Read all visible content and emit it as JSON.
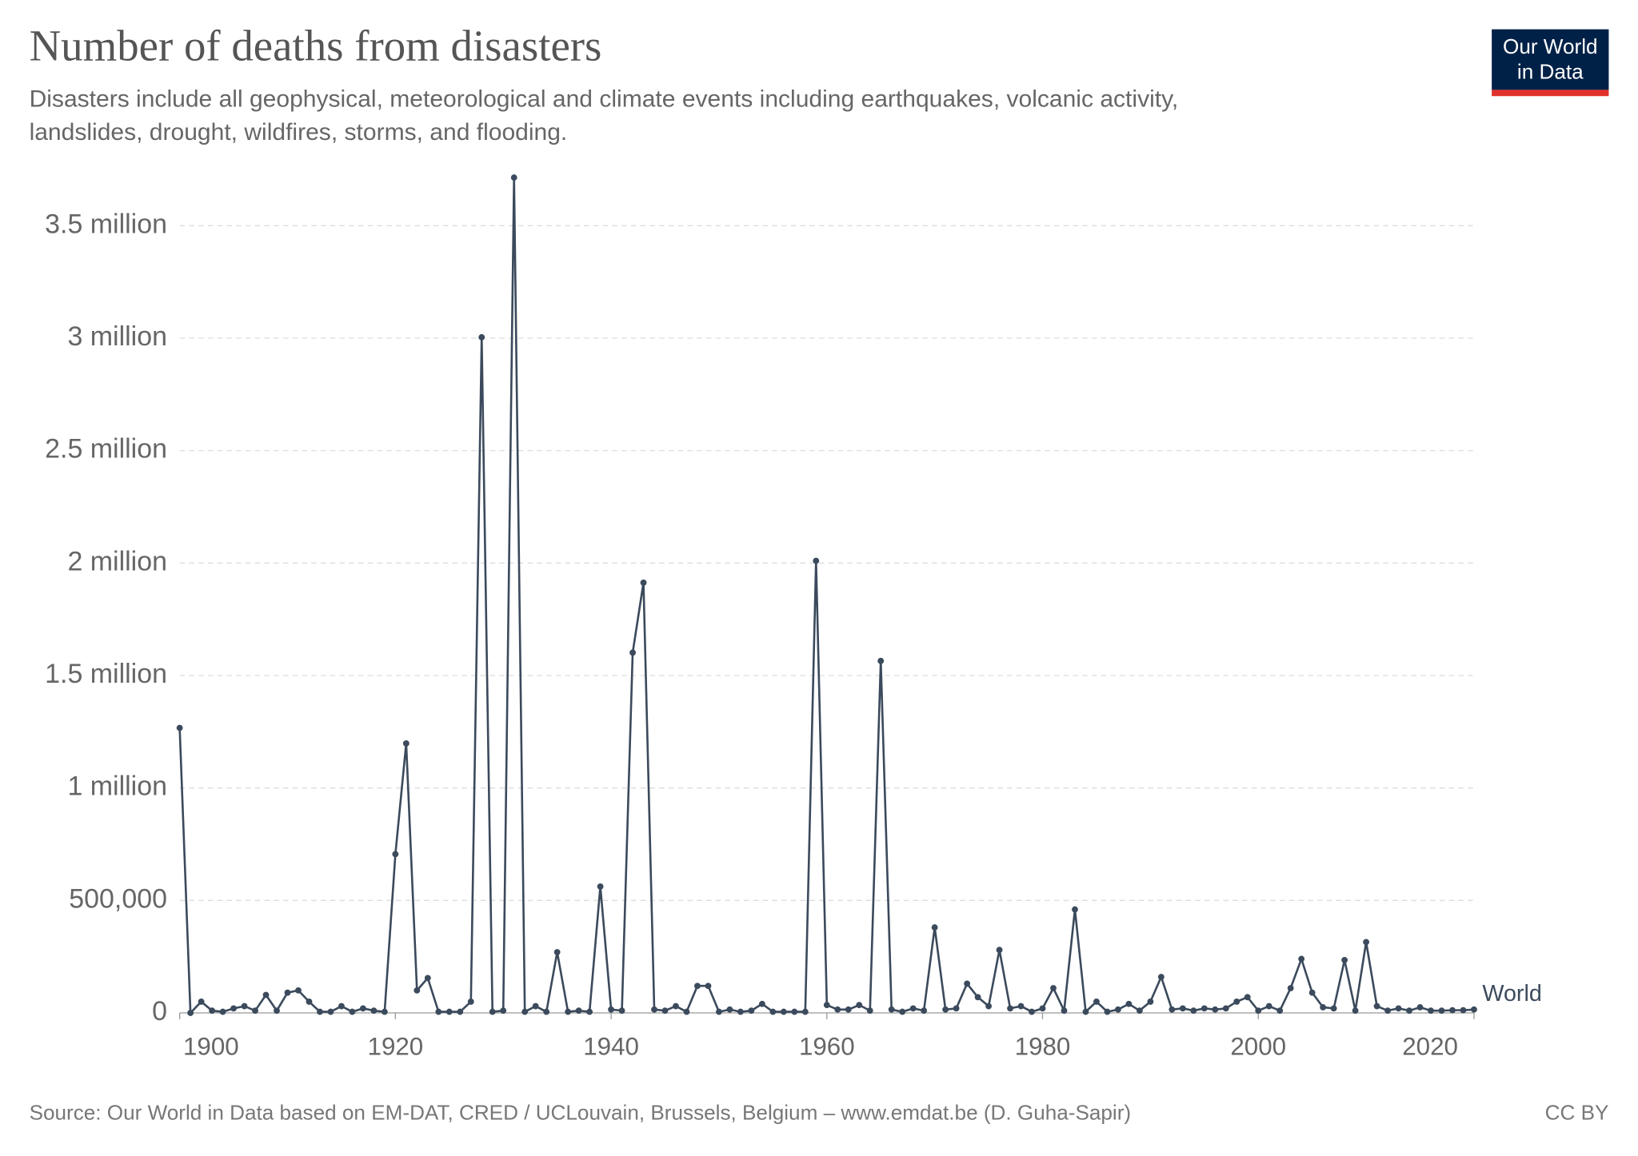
{
  "chart_data": {
    "type": "line",
    "title": "Number of deaths from disasters",
    "subtitle": [
      "Disasters include all geophysical, meteorological and climate events including earthquakes, volcanic activity,",
      "landslides, drought, wildfires, storms, and flooding."
    ],
    "logo": [
      "Our World",
      "in Data"
    ],
    "source": "Source: Our World in Data based on EM-DAT, CRED / UCLouvain, Brussels, Belgium – www.emdat.be (D. Guha-Sapir)",
    "license": "CC BY",
    "x": [
      1900,
      1901,
      1902,
      1903,
      1904,
      1905,
      1906,
      1907,
      1908,
      1909,
      1910,
      1911,
      1912,
      1913,
      1914,
      1915,
      1916,
      1917,
      1918,
      1919,
      1920,
      1921,
      1922,
      1923,
      1924,
      1925,
      1926,
      1927,
      1928,
      1929,
      1930,
      1931,
      1932,
      1933,
      1934,
      1935,
      1936,
      1937,
      1938,
      1939,
      1940,
      1941,
      1942,
      1943,
      1944,
      1945,
      1946,
      1947,
      1948,
      1949,
      1950,
      1951,
      1952,
      1953,
      1954,
      1955,
      1956,
      1957,
      1958,
      1959,
      1960,
      1961,
      1962,
      1963,
      1964,
      1965,
      1966,
      1967,
      1968,
      1969,
      1970,
      1971,
      1972,
      1973,
      1974,
      1975,
      1976,
      1977,
      1978,
      1979,
      1980,
      1981,
      1982,
      1983,
      1984,
      1985,
      1986,
      1987,
      1988,
      1989,
      1990,
      1991,
      1992,
      1993,
      1994,
      1995,
      1996,
      1997,
      1998,
      1999,
      2000,
      2001,
      2002,
      2003,
      2004,
      2005,
      2006,
      2007,
      2008,
      2009,
      2010,
      2011,
      2012,
      2013,
      2014,
      2015,
      2016,
      2017,
      2018,
      2019,
      2020
    ],
    "series": [
      {
        "name": "World",
        "color": "#3b4a5c",
        "values": [
          1267000,
          0,
          50000,
          10000,
          5000,
          20000,
          30000,
          10000,
          80000,
          10000,
          90000,
          100000,
          50000,
          5000,
          5000,
          30000,
          5000,
          20000,
          10000,
          5000,
          706000,
          1198000,
          100000,
          155000,
          5000,
          5000,
          5000,
          50000,
          3004000,
          5000,
          10000,
          3714000,
          5000,
          30000,
          5000,
          270000,
          5000,
          10000,
          5000,
          562000,
          15000,
          10000,
          1602000,
          1913000,
          15000,
          10000,
          30000,
          5000,
          120000,
          120000,
          5000,
          15000,
          5000,
          10000,
          40000,
          5000,
          5000,
          5000,
          5000,
          2010000,
          35000,
          15000,
          15000,
          35000,
          10000,
          1565000,
          15000,
          5000,
          20000,
          10000,
          380000,
          15000,
          20000,
          130000,
          70000,
          30000,
          280000,
          20000,
          30000,
          5000,
          20000,
          110000,
          10000,
          460000,
          5000,
          50000,
          5000,
          15000,
          40000,
          10000,
          50000,
          160000,
          15000,
          20000,
          10000,
          20000,
          15000,
          20000,
          50000,
          70000,
          10000,
          30000,
          10000,
          110000,
          240000,
          90000,
          25000,
          20000,
          235000,
          10000,
          315000,
          30000,
          10000,
          20000,
          10000,
          25000,
          10000,
          10000,
          12000,
          12000,
          15000
        ]
      }
    ],
    "xlim": [
      1900,
      2020
    ],
    "xticks": [
      1900,
      1920,
      1940,
      1960,
      1980,
      2000,
      2020
    ],
    "ylim": [
      0,
      3714000
    ],
    "yticks": [
      0,
      {
        "value": 500000,
        "label": "500,000"
      },
      {
        "value": 1000000,
        "label": "1 million"
      },
      {
        "value": 1500000,
        "label": "1.5 million"
      },
      {
        "value": 2000000,
        "label": "2 million"
      },
      {
        "value": 2500000,
        "label": "2.5 million"
      },
      {
        "value": 3000000,
        "label": "3 million"
      },
      {
        "value": 3500000,
        "label": "3.5 million"
      }
    ],
    "grid": true
  }
}
